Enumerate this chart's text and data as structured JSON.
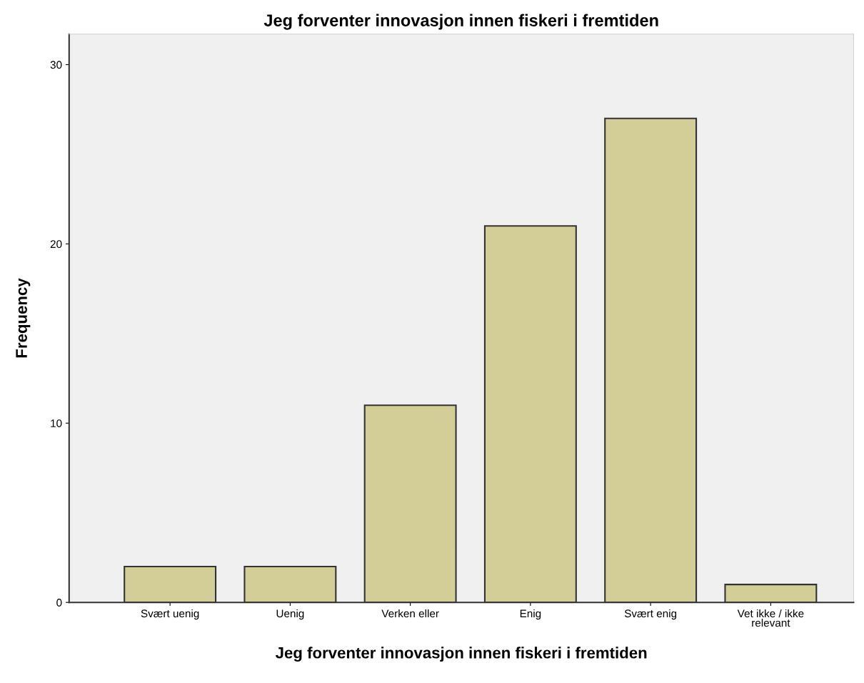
{
  "chart_data": {
    "type": "bar",
    "title": "Jeg forventer innovasjon innen fiskeri i fremtiden",
    "xlabel": "Jeg forventer innovasjon innen fiskeri i fremtiden",
    "ylabel": "Frequency",
    "categories": [
      "Svært uenig",
      "Uenig",
      "Verken eller",
      "Enig",
      "Svært enig",
      "Vet ikke / ikke\nrelevant"
    ],
    "values": [
      2,
      2,
      11,
      21,
      27,
      1
    ],
    "color": "#d3ce97",
    "ylim": [
      0,
      31.7
    ],
    "yticks": [
      0,
      10,
      20,
      30
    ],
    "grid": false,
    "legend": false
  }
}
